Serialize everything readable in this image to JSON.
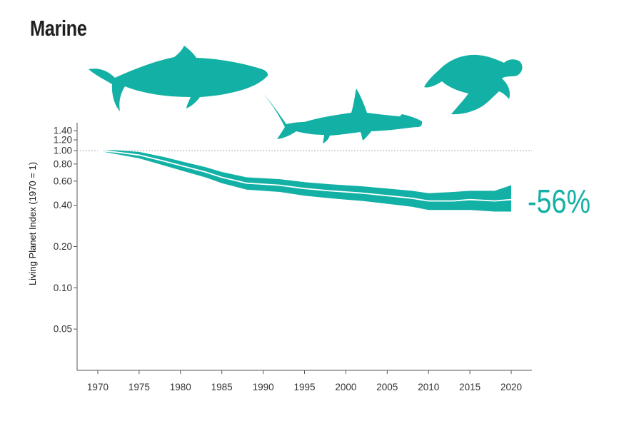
{
  "chart_data": {
    "type": "area",
    "title": "Marine",
    "xlabel": "",
    "ylabel": "Living Planet Index (1970 = 1)",
    "y_scale": "log",
    "ylim": [
      0.025,
      1.6
    ],
    "xlim": [
      1967.5,
      2022.5
    ],
    "x_ticks": [
      1970,
      1975,
      1980,
      1985,
      1990,
      1995,
      2000,
      2005,
      2010,
      2015,
      2020
    ],
    "y_ticks": [
      {
        "value": 1.4,
        "label": "1.40"
      },
      {
        "value": 1.2,
        "label": "1.20"
      },
      {
        "value": 1.0,
        "label": "1.00"
      },
      {
        "value": 0.8,
        "label": "0.80"
      },
      {
        "value": 0.6,
        "label": "0.60"
      },
      {
        "value": 0.4,
        "label": "0.40"
      },
      {
        "value": 0.2,
        "label": "0.20"
      },
      {
        "value": 0.1,
        "label": "0.10"
      },
      {
        "value": 0.05,
        "label": "0.05"
      }
    ],
    "baseline": 1.0,
    "series": [
      {
        "x": [
          1970,
          1972,
          1975,
          1978,
          1980,
          1983,
          1985,
          1988,
          1990,
          1992,
          1995,
          1998,
          2000,
          2002,
          2005,
          2008,
          2010,
          2013,
          2015,
          2018,
          2020
        ],
        "index": [
          1.0,
          0.98,
          0.93,
          0.84,
          0.78,
          0.7,
          0.64,
          0.58,
          0.57,
          0.56,
          0.53,
          0.51,
          0.5,
          0.49,
          0.47,
          0.45,
          0.43,
          0.43,
          0.44,
          0.43,
          0.44
        ],
        "lower": [
          1.0,
          0.95,
          0.88,
          0.78,
          0.72,
          0.64,
          0.58,
          0.52,
          0.51,
          0.5,
          0.47,
          0.45,
          0.44,
          0.43,
          0.41,
          0.39,
          0.37,
          0.37,
          0.37,
          0.36,
          0.36
        ],
        "upper": [
          1.0,
          1.01,
          0.98,
          0.9,
          0.84,
          0.76,
          0.7,
          0.64,
          0.63,
          0.62,
          0.59,
          0.57,
          0.56,
          0.55,
          0.53,
          0.51,
          0.49,
          0.5,
          0.51,
          0.51,
          0.56
        ]
      }
    ],
    "change_label": "-56%",
    "colors": {
      "band": "#13b0a5",
      "index_line": "#ffffff",
      "silhouettes": "#13b0a5",
      "axis": "#555555",
      "baseline": "#a8a8a8"
    },
    "icons": [
      "whale-silhouette-icon",
      "hammerhead-shark-silhouette-icon",
      "sea-turtle-silhouette-icon"
    ]
  }
}
